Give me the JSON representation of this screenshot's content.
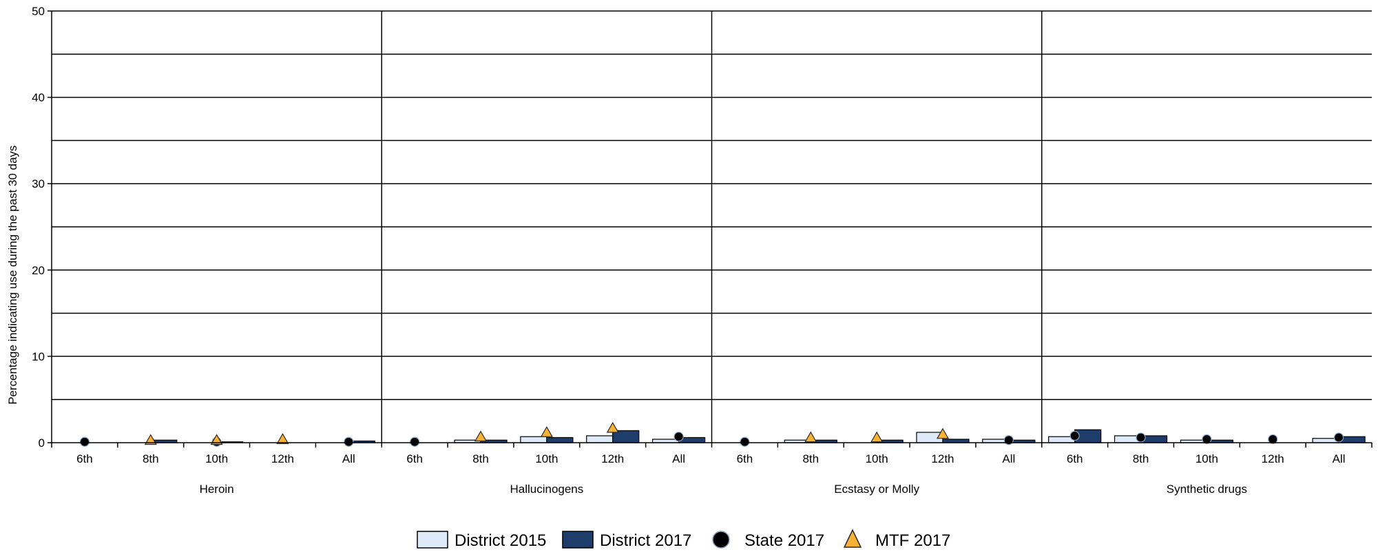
{
  "chart_data": {
    "type": "bar",
    "ylabel": "Percentage indicating use during the past 30 days",
    "ylim": [
      0,
      50
    ],
    "y_ticks": [
      0,
      10,
      20,
      30,
      40,
      50
    ],
    "grid": true,
    "legend_position": "bottom",
    "subcategories": [
      "6th",
      "8th",
      "10th",
      "12th",
      "All"
    ],
    "groups": [
      {
        "name": "Heroin",
        "district_2015": [
          0,
          0,
          0,
          0,
          0
        ],
        "district_2017": [
          0,
          0.3,
          0.1,
          0,
          0.2
        ],
        "state_2017": [
          0.1,
          null,
          0.1,
          null,
          0.1
        ],
        "mtf_2017": [
          null,
          0.2,
          0.2,
          0.3,
          null
        ]
      },
      {
        "name": "Hallucinogens",
        "district_2015": [
          0,
          0.3,
          0.7,
          0.8,
          0.4
        ],
        "district_2017": [
          0,
          0.3,
          0.6,
          1.4,
          0.6
        ],
        "state_2017": [
          0.1,
          null,
          null,
          null,
          0.7
        ],
        "mtf_2017": [
          null,
          0.6,
          1.1,
          1.6,
          null
        ]
      },
      {
        "name": "Ecstasy or Molly",
        "district_2015": [
          0,
          0.3,
          0,
          1.2,
          0.4
        ],
        "district_2017": [
          0,
          0.3,
          0.3,
          0.4,
          0.3
        ],
        "state_2017": [
          0.1,
          null,
          null,
          null,
          0.3
        ],
        "mtf_2017": [
          null,
          0.5,
          0.5,
          0.9,
          null
        ]
      },
      {
        "name": "Synthetic drugs",
        "district_2015": [
          0.7,
          0.8,
          0.3,
          0,
          0.5
        ],
        "district_2017": [
          1.5,
          0.8,
          0.3,
          0,
          0.7
        ],
        "state_2017": [
          0.8,
          0.6,
          0.4,
          0.4,
          0.6
        ],
        "mtf_2017": [
          null,
          null,
          null,
          null,
          null
        ]
      }
    ],
    "series": [
      {
        "key": "district_2015",
        "name": "District 2015",
        "color": "#dcebf7",
        "shape": "bar"
      },
      {
        "key": "district_2017",
        "name": "District 2017",
        "color": "#1f3d6b",
        "shape": "bar"
      },
      {
        "key": "state_2017",
        "name": "State 2017",
        "color": "#000000",
        "shape": "circle"
      },
      {
        "key": "mtf_2017",
        "name": "MTF 2017",
        "color": "#f6b233",
        "shape": "triangle"
      }
    ]
  }
}
